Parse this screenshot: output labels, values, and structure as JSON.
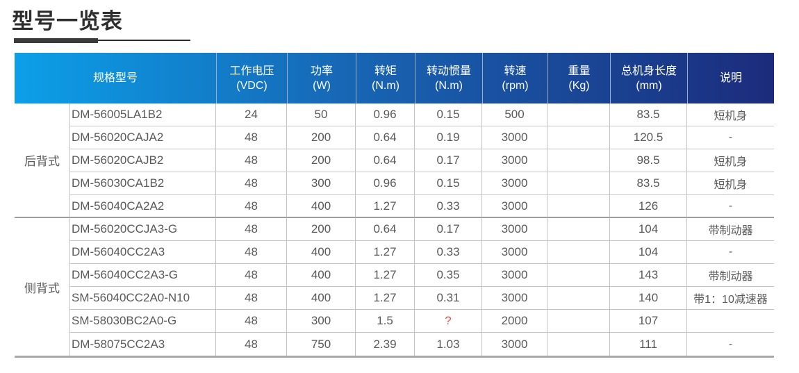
{
  "page": {
    "title": "型号一览表"
  },
  "colors": {
    "header_grad_start": "#0c9fe8",
    "header_grad_mid": "#1765b3",
    "header_grad_end": "#1c2b7c",
    "header_text": "#ffffff",
    "header_divider": "#9fadc0",
    "body_text": "#595959",
    "grid_line": "#c3c3c3",
    "strong_line": "#9d9d9d",
    "bottom_line": "#a8a8a8",
    "alert_red": "#ef504c",
    "title_text": "#2d2d2d"
  },
  "table": {
    "header": {
      "model_col": "规格型号",
      "columns": [
        {
          "id": "voltage",
          "line1": "工作电压",
          "line2": "(VDC)"
        },
        {
          "id": "power",
          "line1": "功率",
          "line2": "(W)"
        },
        {
          "id": "torque",
          "line1": "转矩",
          "line2": "(N.m)"
        },
        {
          "id": "inertia",
          "line1": "转动惯量",
          "line2": "(N.m)"
        },
        {
          "id": "speed",
          "line1": "转速",
          "line2": "(rpm)"
        },
        {
          "id": "weight",
          "line1": "重量",
          "line2": "(Kg)"
        },
        {
          "id": "length",
          "line1": "总机身长度",
          "line2": "(mm)"
        },
        {
          "id": "note",
          "line1": "说明",
          "line2": ""
        }
      ]
    },
    "groups": [
      {
        "label": "后背式",
        "rows": [
          {
            "model": "DM-56005LA1B2",
            "voltage": "24",
            "power": "50",
            "torque": "0.96",
            "inertia": "0.15",
            "speed": "500",
            "weight": "",
            "length": "83.5",
            "note": "短机身"
          },
          {
            "model": "DM-56020CAJA2",
            "voltage": "48",
            "power": "200",
            "torque": "0.64",
            "inertia": "0.19",
            "speed": "3000",
            "weight": "",
            "length": "120.5",
            "note": "-"
          },
          {
            "model": "DM-56020CAJB2",
            "voltage": "48",
            "power": "200",
            "torque": "0.64",
            "inertia": "0.17",
            "speed": "3000",
            "weight": "",
            "length": "98.5",
            "note": "短机身"
          },
          {
            "model": "DM-56030CA1B2",
            "voltage": "48",
            "power": "300",
            "torque": "0.96",
            "inertia": "0.15",
            "speed": "3000",
            "weight": "",
            "length": "83.5",
            "note": "短机身"
          },
          {
            "model": "DM-56040CA2A2",
            "voltage": "48",
            "power": "400",
            "torque": "1.27",
            "inertia": "0.33",
            "speed": "3000",
            "weight": "",
            "length": "126",
            "note": "-"
          }
        ]
      },
      {
        "label": "侧背式",
        "rows": [
          {
            "model": "DM-56020CCJA3-G",
            "voltage": "48",
            "power": "200",
            "torque": "0.64",
            "inertia": "0.17",
            "speed": "3000",
            "weight": "",
            "length": "104",
            "note": "带制动器"
          },
          {
            "model": "DM-56040CC2A3",
            "voltage": "48",
            "power": "400",
            "torque": "1.27",
            "inertia": "0.33",
            "speed": "3000",
            "weight": "",
            "length": "104",
            "note": "-"
          },
          {
            "model": "DM-56040CC2A3-G",
            "voltage": "48",
            "power": "400",
            "torque": "1.27",
            "inertia": "0.35",
            "speed": "3000",
            "weight": "",
            "length": "143",
            "note": "带制动器"
          },
          {
            "model": "SM-56040CC2A0-N10",
            "voltage": "48",
            "power": "400",
            "torque": "1.27",
            "inertia": "0.31",
            "speed": "3000",
            "weight": "",
            "length": "140",
            "note": "带1：10减速器"
          },
          {
            "model": "SM-58030BC2A0-G",
            "voltage": "48",
            "power": "300",
            "torque": "1.5",
            "inertia": "?",
            "inertia_red": true,
            "speed": "2000",
            "weight": "",
            "length": "107",
            "note": ""
          },
          {
            "model": "DM-58075CC2A3",
            "voltage": "48",
            "power": "750",
            "torque": "2.39",
            "inertia": "1.03",
            "speed": "3000",
            "weight": "",
            "length": "111",
            "note": "-"
          }
        ]
      }
    ]
  }
}
